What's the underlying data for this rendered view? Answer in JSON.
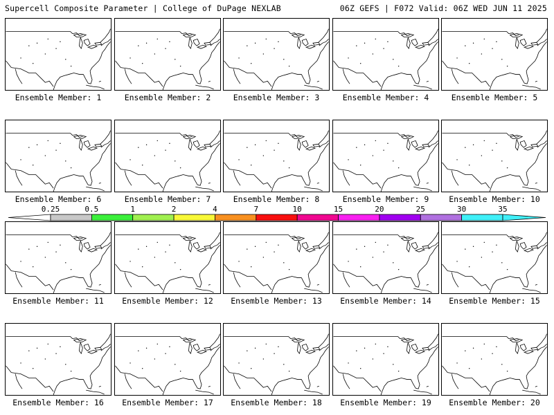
{
  "header": {
    "left": "Supercell Composite Parameter | College of DuPage NEXLAB",
    "right": "06Z GEFS | F072 Valid: 06Z WED JUN 11 2025"
  },
  "members": [
    {
      "label": "Ensemble Member: 1"
    },
    {
      "label": "Ensemble Member: 2"
    },
    {
      "label": "Ensemble Member: 3"
    },
    {
      "label": "Ensemble Member: 4"
    },
    {
      "label": "Ensemble Member: 5"
    },
    {
      "label": "Ensemble Member: 6"
    },
    {
      "label": "Ensemble Member: 7"
    },
    {
      "label": "Ensemble Member: 8"
    },
    {
      "label": "Ensemble Member: 9"
    },
    {
      "label": "Ensemble Member: 10"
    },
    {
      "label": "Ensemble Member: 11"
    },
    {
      "label": "Ensemble Member: 12"
    },
    {
      "label": "Ensemble Member: 13"
    },
    {
      "label": "Ensemble Member: 14"
    },
    {
      "label": "Ensemble Member: 15"
    },
    {
      "label": "Ensemble Member: 16"
    },
    {
      "label": "Ensemble Member: 17"
    },
    {
      "label": "Ensemble Member: 18"
    },
    {
      "label": "Ensemble Member: 19"
    },
    {
      "label": "Ensemble Member: 20"
    }
  ],
  "colorbar": {
    "ticks": [
      "0.25",
      "0.5",
      "1",
      "2",
      "4",
      "7",
      "10",
      "15",
      "20",
      "25",
      "30",
      "35"
    ],
    "colors": [
      "#c8c8c8",
      "#3cf03c",
      "#a0f050",
      "#f8f838",
      "#f89020",
      "#f81010",
      "#f00890",
      "#f820f0",
      "#a000f0",
      "#b070e0",
      "#40f0f8"
    ]
  }
}
